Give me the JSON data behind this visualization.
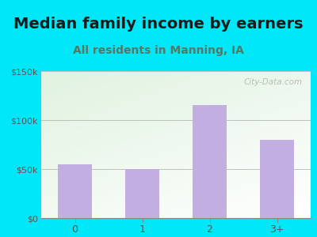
{
  "title": "Median family income by earners",
  "subtitle": "All residents in Manning, IA",
  "categories": [
    "0",
    "1",
    "2",
    "3+"
  ],
  "values": [
    55000,
    50000,
    115000,
    80000
  ],
  "bar_color": "#c2aee0",
  "ylim": [
    0,
    150000
  ],
  "yticks": [
    0,
    50000,
    100000,
    150000
  ],
  "ytick_labels": [
    "$0",
    "$50k",
    "$100k",
    "$150k"
  ],
  "title_fontsize": 14,
  "subtitle_fontsize": 10,
  "title_color": "#1a1a1a",
  "subtitle_color": "#557766",
  "tick_color": "#555555",
  "background_outer": "#00e8f8",
  "watermark": "City-Data.com"
}
